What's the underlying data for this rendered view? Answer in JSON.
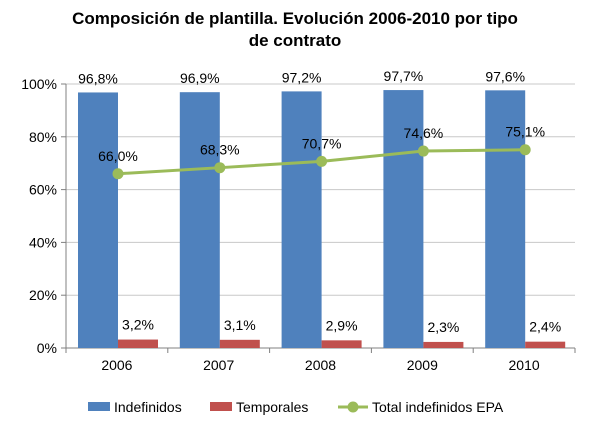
{
  "chart_data": {
    "type": "bar",
    "title_lines": [
      "Composición de plantilla. Evolución 2006-2010 por tipo",
      "de contrato"
    ],
    "categories": [
      "2006",
      "2007",
      "2008",
      "2009",
      "2010"
    ],
    "series": [
      {
        "name": "Indefinidos",
        "type": "bar",
        "color": "#4F81BD",
        "values": [
          96.8,
          96.9,
          97.2,
          97.7,
          97.6
        ],
        "labels": [
          "96,8%",
          "96,9%",
          "97,2%",
          "97,7%",
          "97,6%"
        ]
      },
      {
        "name": "Temporales",
        "type": "bar",
        "color": "#C0504D",
        "values": [
          3.2,
          3.1,
          2.9,
          2.3,
          2.4
        ],
        "labels": [
          "3,2%",
          "3,1%",
          "2,9%",
          "2,3%",
          "2,4%"
        ]
      },
      {
        "name": "Total indefinidos EPA",
        "type": "line",
        "color": "#9BBB59",
        "values": [
          66.0,
          68.3,
          70.7,
          74.6,
          75.1
        ],
        "labels": [
          "66,0%",
          "68,3%",
          "70,7%",
          "74,6%",
          "75,1%"
        ]
      }
    ],
    "ylim": [
      0,
      100
    ],
    "yticks": [
      0,
      20,
      40,
      60,
      80,
      100
    ],
    "ytick_labels": [
      "0%",
      "20%",
      "40%",
      "60%",
      "80%",
      "100%"
    ],
    "grid": true,
    "legend_position": "bottom"
  }
}
